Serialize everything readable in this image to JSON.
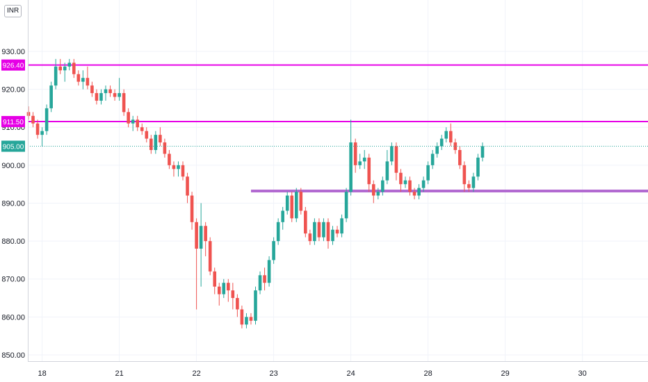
{
  "currency_badge": "INR",
  "colors": {
    "up": "#26a69a",
    "down": "#ef5350",
    "grid": "#f0f3fa",
    "axis_text": "#131722",
    "resistance": "#e600e6",
    "support": "#b26ad1",
    "price_line": "#26a69a"
  },
  "chart_data": {
    "type": "candlestick",
    "title": "",
    "xlabel": "",
    "ylabel": "",
    "ylim": [
      848,
      938
    ],
    "y_ticks": [
      "850.00",
      "860.00",
      "870.00",
      "880.00",
      "890.00",
      "900.00",
      "910.00",
      "920.00",
      "930.00"
    ],
    "x_ticks": [
      {
        "label": "18",
        "bar": 3
      },
      {
        "label": "21",
        "bar": 20
      },
      {
        "label": "22",
        "bar": 37
      },
      {
        "label": "23",
        "bar": 54
      },
      {
        "label": "24",
        "bar": 71
      },
      {
        "label": "28",
        "bar": 88
      },
      {
        "label": "29",
        "bar": 105
      },
      {
        "label": "30",
        "bar": 122
      }
    ],
    "horizontal_lines": [
      {
        "label": "926.40",
        "value": 926.4,
        "kind": "resistance"
      },
      {
        "label": "911.50",
        "value": 911.5,
        "kind": "resistance"
      }
    ],
    "support_line": {
      "value": 893.2,
      "from_bar": 49,
      "to_bar": 139
    },
    "last_price": {
      "label": "905.00",
      "value": 905.0
    },
    "candles": [
      [
        914,
        915.5,
        912,
        913
      ],
      [
        913,
        914,
        910,
        911
      ],
      [
        911,
        912,
        907,
        908
      ],
      [
        908,
        910,
        905,
        909
      ],
      [
        909,
        916,
        908,
        915
      ],
      [
        915,
        922,
        914,
        921
      ],
      [
        921,
        928,
        920,
        926
      ],
      [
        926,
        928,
        924,
        925
      ],
      [
        925,
        927,
        922,
        926
      ],
      [
        926,
        928,
        925,
        927
      ],
      [
        927,
        928,
        923,
        924
      ],
      [
        924,
        925,
        921,
        922
      ],
      [
        922,
        925,
        920,
        923
      ],
      [
        923,
        926,
        920,
        921
      ],
      [
        921,
        922,
        918,
        919
      ],
      [
        919,
        920,
        916,
        917
      ],
      [
        917,
        920,
        916,
        919
      ],
      [
        919,
        921,
        917,
        920
      ],
      [
        920,
        921,
        918,
        919
      ],
      [
        919,
        920,
        917,
        918
      ],
      [
        918,
        923,
        917,
        919
      ],
      [
        919,
        920,
        913,
        914
      ],
      [
        914,
        915,
        910,
        911
      ],
      [
        911,
        913,
        909,
        912
      ],
      [
        912,
        913,
        909,
        910
      ],
      [
        910,
        911,
        908,
        909
      ],
      [
        909,
        910,
        906,
        907
      ],
      [
        907,
        908,
        903,
        904
      ],
      [
        904,
        909,
        903,
        908
      ],
      [
        908,
        910,
        905,
        906
      ],
      [
        906,
        907,
        902,
        903
      ],
      [
        903,
        904,
        899,
        900
      ],
      [
        900,
        901,
        897,
        899
      ],
      [
        899,
        901,
        897,
        900
      ],
      [
        900,
        901,
        896,
        897
      ],
      [
        897,
        898,
        890,
        892
      ],
      [
        892,
        893,
        883,
        885
      ],
      [
        885,
        886,
        862,
        878
      ],
      [
        878,
        890,
        868,
        884
      ],
      [
        884,
        885,
        876,
        880
      ],
      [
        880,
        881,
        871,
        872
      ],
      [
        872,
        873,
        866,
        868
      ],
      [
        868,
        869,
        863,
        866
      ],
      [
        866,
        870,
        865,
        869
      ],
      [
        869,
        870,
        864,
        867
      ],
      [
        867,
        869,
        862,
        865
      ],
      [
        865,
        866,
        860,
        862
      ],
      [
        862,
        863,
        857,
        858
      ],
      [
        858,
        861,
        857,
        860
      ],
      [
        860,
        861,
        858,
        859
      ],
      [
        859,
        868,
        858,
        867
      ],
      [
        867,
        872,
        866,
        871
      ],
      [
        871,
        873,
        867,
        869
      ],
      [
        869,
        876,
        868,
        875
      ],
      [
        875,
        881,
        874,
        880
      ],
      [
        880,
        886,
        879,
        885
      ],
      [
        885,
        889,
        883,
        888
      ],
      [
        888,
        893,
        887,
        892
      ],
      [
        892,
        893,
        885,
        886
      ],
      [
        886,
        894,
        885,
        893
      ],
      [
        893,
        894,
        887,
        888
      ],
      [
        888,
        889,
        881,
        882
      ],
      [
        882,
        883,
        879,
        880
      ],
      [
        880,
        886,
        879,
        885
      ],
      [
        885,
        886,
        880,
        881
      ],
      [
        881,
        886,
        880,
        885
      ],
      [
        885,
        886,
        878,
        880
      ],
      [
        880,
        884,
        879,
        883
      ],
      [
        883,
        884,
        881,
        882
      ],
      [
        882,
        887,
        881,
        886
      ],
      [
        886,
        894,
        885,
        893
      ],
      [
        893,
        912,
        892,
        906
      ],
      [
        906,
        907,
        898,
        900
      ],
      [
        900,
        903,
        899,
        901
      ],
      [
        901,
        904,
        899,
        902
      ],
      [
        902,
        903,
        893,
        895
      ],
      [
        895,
        896,
        890,
        892
      ],
      [
        892,
        894,
        891,
        893
      ],
      [
        893,
        897,
        892,
        896
      ],
      [
        896,
        904,
        895,
        901
      ],
      [
        901,
        906,
        900,
        905
      ],
      [
        905,
        906,
        896,
        898
      ],
      [
        898,
        899,
        893,
        895
      ],
      [
        895,
        897,
        894,
        896
      ],
      [
        896,
        897,
        892,
        893
      ],
      [
        893,
        894,
        891,
        892
      ],
      [
        892,
        895,
        891,
        894
      ],
      [
        894,
        897,
        893,
        896
      ],
      [
        896,
        901,
        895,
        900
      ],
      [
        900,
        904,
        899,
        903
      ],
      [
        903,
        906,
        902,
        905
      ],
      [
        905,
        908,
        904,
        907
      ],
      [
        907,
        910,
        906,
        909
      ],
      [
        909,
        911,
        905,
        906
      ],
      [
        906,
        907,
        903,
        904
      ],
      [
        904,
        905,
        899,
        900
      ],
      [
        900,
        901,
        893,
        895
      ],
      [
        895,
        896,
        893,
        894
      ],
      [
        894,
        898,
        893,
        897
      ],
      [
        897,
        903,
        896,
        902
      ],
      [
        902,
        906,
        901,
        905
      ]
    ]
  }
}
